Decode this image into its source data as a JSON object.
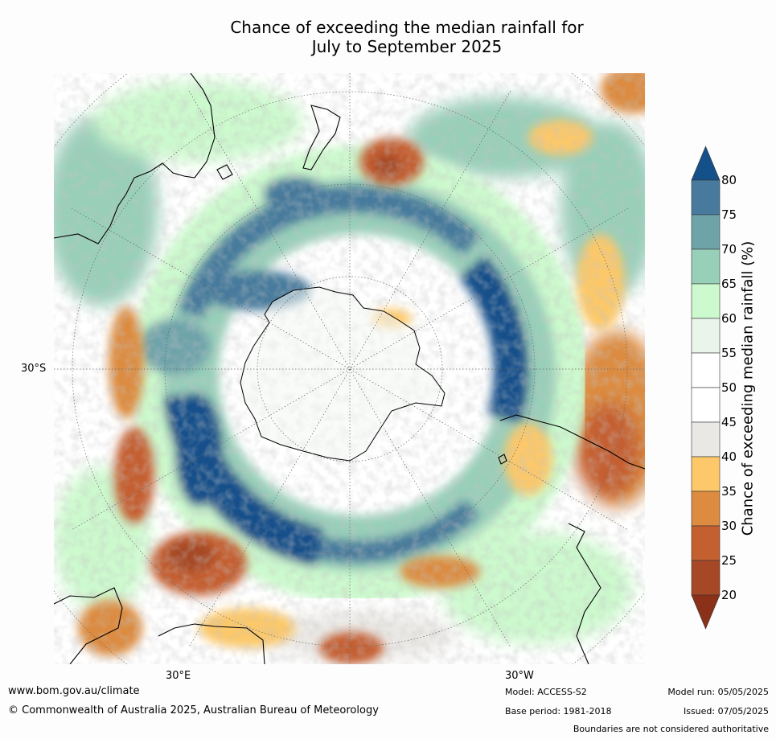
{
  "title_line1": "Chance of exceeding the median rainfall for",
  "title_line2": "July to September 2025",
  "lat_label": "30°S",
  "lon_labels": {
    "east": "30°E",
    "west": "30°W"
  },
  "colorbar": {
    "title": "Chance of exceeding median rainfall (%)",
    "ticks": [
      "80",
      "75",
      "70",
      "65",
      "60",
      "55",
      "50",
      "45",
      "40",
      "35",
      "30",
      "25",
      "20"
    ],
    "bands": [
      {
        "range": "80+",
        "color": "#14508a"
      },
      {
        "range": "75-80",
        "color": "#477a9c"
      },
      {
        "range": "70-75",
        "color": "#6ea3aa"
      },
      {
        "range": "65-70",
        "color": "#98cfb9"
      },
      {
        "range": "60-65",
        "color": "#ccf9cd"
      },
      {
        "range": "55-60",
        "color": "#eaf5ea"
      },
      {
        "range": "50-55",
        "color": "#ffffff"
      },
      {
        "range": "45-50",
        "color": "#ffffff"
      },
      {
        "range": "40-45",
        "color": "#eae8e5"
      },
      {
        "range": "35-40",
        "color": "#fcc869"
      },
      {
        "range": "30-35",
        "color": "#dc8b40"
      },
      {
        "range": "25-30",
        "color": "#c45f30"
      },
      {
        "range": "20-25",
        "color": "#a64826"
      },
      {
        "range": "<20",
        "color": "#8b3019"
      }
    ]
  },
  "footer": {
    "website": "www.bom.gov.au/climate",
    "copyright": "© Commonwealth of Australia 2025, Australian Bureau of Meteorology",
    "model": "Model: ACCESS-S2",
    "base_period": "Base period: 1981-2018",
    "model_run": "Model run: 05/05/2025",
    "issued": "Issued: 07/05/2025",
    "disclaimer": "Boundaries are not considered authoritative"
  }
}
